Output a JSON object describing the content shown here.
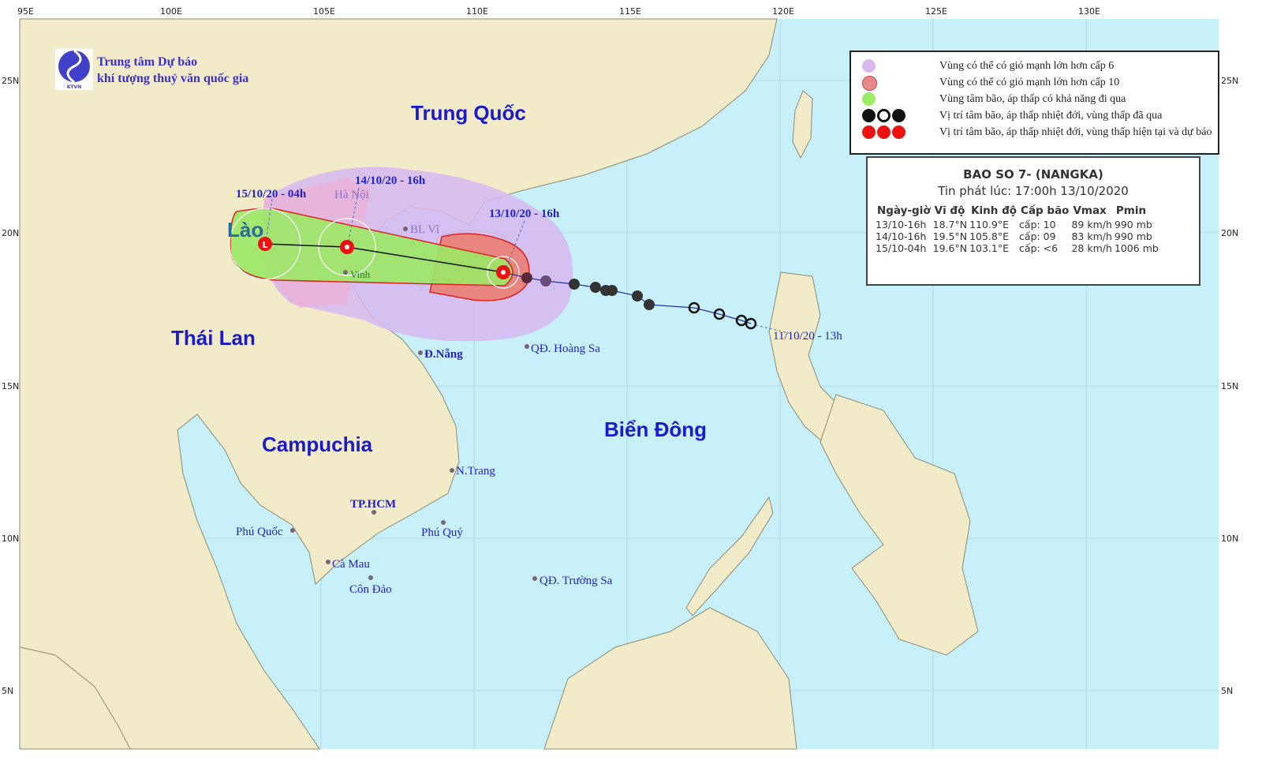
{
  "agency": {
    "line1": "Trung tâm Dự báo",
    "line2": "khí tượng thuỷ văn quốc gia",
    "logo_text": "KTVN"
  },
  "axes": {
    "lon_ticks": [
      "95E",
      "100E",
      "105E",
      "110E",
      "115E",
      "120E",
      "125E",
      "130E"
    ],
    "lat_ticks": [
      "25N",
      "20N",
      "15N",
      "10N",
      "5N"
    ]
  },
  "countries": [
    "Trung Quốc",
    "Lào",
    "Thái Lan",
    "Campuchia",
    "Biển Đông"
  ],
  "places": [
    "Hà Nội",
    "BL Vĩ",
    "Vinh",
    "Đ.Nẵng",
    "QĐ. Hoàng Sa",
    "N.Trang",
    "TP.HCM",
    "Phú Quốc",
    "Phú Quý",
    "Cà Mau",
    "Côn Đảo",
    "QĐ. Trường Sa"
  ],
  "track_labels": [
    "15/10/20 - 04h",
    "14/10/20 - 16h",
    "13/10/20 - 16h",
    "11/10/20 - 13h"
  ],
  "legend": [
    {
      "text": "Vùng có thể có gió mạnh lớn hơn cấp 6",
      "color": "#d9b8f2"
    },
    {
      "text": "Vùng có thể có gió mạnh lớn hơn cấp 10",
      "color": "#e88a8a"
    },
    {
      "text": "Vùng tâm bão, áp thấp có khả năng đi qua",
      "color": "#99ee66"
    },
    {
      "text": "Vị trí tâm bão, áp thấp nhiệt đới, vùng thấp đã qua",
      "color": "#111111"
    },
    {
      "text": "Vị trí tâm bão, áp thấp nhiệt đới, vùng thấp hiện tại và dự báo",
      "color": "#ee1111"
    }
  ],
  "info": {
    "title": "BAO SO 7- (NANGKA)",
    "issued": "Tin phát lúc: 17:00h 13/10/2020",
    "headers": [
      "Ngày-giờ",
      "Vĩ độ",
      "Kinh độ",
      "Cấp bão",
      "Vmax",
      "Pmin"
    ],
    "rows": [
      [
        "13/10-16h",
        "18.7°N",
        "110.9°E",
        "cấp: 10",
        "89 km/h",
        "990 mb"
      ],
      [
        "14/10-16h",
        "19.5°N",
        "105.8°E",
        "cấp: 09",
        "83 km/h",
        "990 mb"
      ],
      [
        "15/10-04h",
        "19.6°N",
        "103.1°E",
        "cấp: <6",
        "28 km/h",
        "1006 mb"
      ]
    ]
  },
  "colors": {
    "sea": "#c8f0fb",
    "land": "#f2ebc9",
    "track": "#2233aa"
  }
}
